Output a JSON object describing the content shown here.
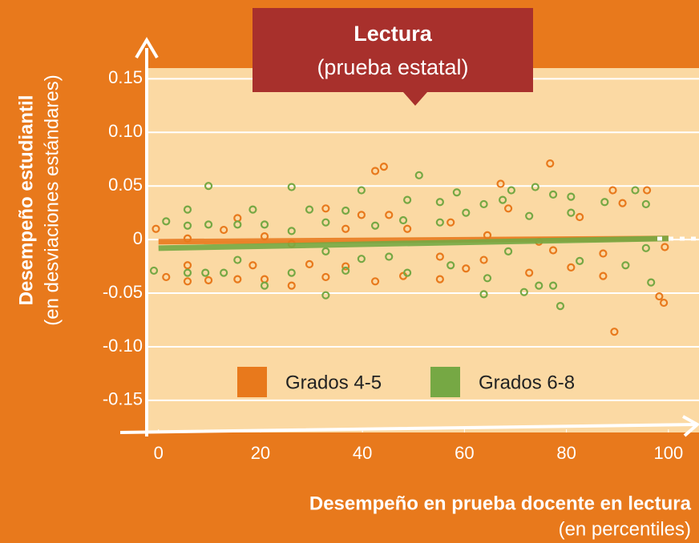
{
  "chart_data": {
    "type": "scatter",
    "title": "Lectura",
    "subtitle": "(prueba estatal)",
    "y_label": "Desempeño estudiantil",
    "y_label_note": "(en desviaciones estándares)",
    "x_label": "Desempeño en prueba docente en lectura",
    "x_label_note": "(en percentiles)",
    "xlim": [
      -2,
      106
    ],
    "ylim": [
      -0.18,
      0.16
    ],
    "xticks": [
      0,
      20,
      40,
      60,
      80,
      100
    ],
    "yticks": [
      0.15,
      {
        "value": 0.1,
        "label": "0.10"
      },
      0.05,
      0,
      -0.05,
      {
        "value": -0.1,
        "label": "-0.10"
      },
      -0.15
    ],
    "grid": true,
    "legend": "bottom",
    "series": [
      {
        "name": "Grados 4-5",
        "color": "#e8791c",
        "x": [
          -0.5,
          1.5,
          5.7,
          5.7,
          5.7,
          9.8,
          12.8,
          15.5,
          15.5,
          18.5,
          20.8,
          20.8,
          26.1,
          26.1,
          29.6,
          32.8,
          32.8,
          36.7,
          36.7,
          39.8,
          42.5,
          42.5,
          44.2,
          45.2,
          48.0,
          48.8,
          55.2,
          55.2,
          57.3,
          60.3,
          63.8,
          64.5,
          67.1,
          68.6,
          72.7,
          74.6,
          76.8,
          77.4,
          80.9,
          82.6,
          87.2,
          87.2,
          89.1,
          89.4,
          91.0,
          95.8,
          98.2,
          99.1,
          99.3
        ],
        "values": [
          0.01,
          -0.035,
          -0.024,
          -0.039,
          0.001,
          -0.038,
          0.009,
          0.02,
          -0.037,
          -0.024,
          0.003,
          -0.037,
          -0.043,
          -0.004,
          -0.023,
          0.029,
          -0.035,
          0.01,
          -0.025,
          0.023,
          0.064,
          -0.039,
          0.068,
          0.023,
          -0.034,
          0.01,
          -0.037,
          -0.016,
          0.016,
          -0.027,
          -0.019,
          0.004,
          0.052,
          0.029,
          -0.031,
          -0.002,
          0.071,
          -0.01,
          -0.026,
          0.021,
          -0.013,
          -0.034,
          0.046,
          -0.086,
          0.034,
          0.046,
          -0.053,
          -0.059,
          -0.007
        ],
        "trend_x": [
          0,
          100
        ],
        "trend_values": [
          -0.002,
          0.001
        ]
      },
      {
        "name": "Grados 6-8",
        "color": "#76a844",
        "x": [
          -0.9,
          1.5,
          5.7,
          5.7,
          5.7,
          9.2,
          9.8,
          9.8,
          12.8,
          15.5,
          15.5,
          18.5,
          20.8,
          20.8,
          26.1,
          26.1,
          26.1,
          29.6,
          32.8,
          32.8,
          32.8,
          36.7,
          36.7,
          39.8,
          39.8,
          42.5,
          45.2,
          48.0,
          48.8,
          48.8,
          51.1,
          55.2,
          55.2,
          57.3,
          58.5,
          60.3,
          63.8,
          63.8,
          64.5,
          67.5,
          69.2,
          68.6,
          71.7,
          72.7,
          73.9,
          74.6,
          77.4,
          77.4,
          78.8,
          80.9,
          80.9,
          82.6,
          87.5,
          91.6,
          93.5,
          95.6,
          95.6,
          96.6
        ],
        "values": [
          -0.029,
          0.017,
          0.028,
          0.013,
          -0.031,
          -0.031,
          0.05,
          0.014,
          -0.031,
          0.014,
          -0.019,
          0.028,
          0.014,
          -0.043,
          0.049,
          0.008,
          -0.031,
          0.028,
          0.016,
          -0.011,
          -0.052,
          0.027,
          -0.029,
          0.046,
          -0.018,
          0.013,
          -0.016,
          0.018,
          0.037,
          -0.031,
          0.06,
          0.035,
          0.016,
          -0.024,
          0.044,
          0.025,
          0.033,
          -0.051,
          -0.036,
          0.037,
          0.046,
          -0.011,
          -0.049,
          0.022,
          0.049,
          -0.043,
          0.042,
          -0.043,
          -0.062,
          0.04,
          0.025,
          -0.02,
          0.035,
          -0.024,
          0.046,
          0.033,
          -0.008,
          -0.04
        ],
        "trend_x": [
          0,
          100
        ],
        "trend_values": [
          -0.008,
          0.001
        ]
      }
    ]
  }
}
